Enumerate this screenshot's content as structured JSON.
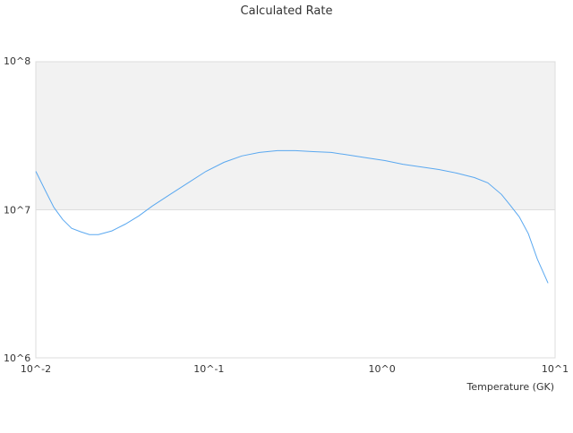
{
  "chart_data": {
    "type": "line",
    "title": "Calculated Rate",
    "xlabel": "Temperature (GK)",
    "ylabel": "",
    "xscale": "log",
    "yscale": "log",
    "xlim": [
      0.01,
      10
    ],
    "ylim": [
      1000000,
      100000000
    ],
    "xticks": [
      {
        "value": 0.01,
        "label": "10^-2"
      },
      {
        "value": 0.1,
        "label": "10^-1"
      },
      {
        "value": 1,
        "label": "10^0"
      },
      {
        "value": 10,
        "label": "10^1"
      }
    ],
    "yticks": [
      {
        "value": 1000000,
        "label": "10^6"
      },
      {
        "value": 10000000,
        "label": "10^7"
      },
      {
        "value": 100000000,
        "label": "10^8"
      }
    ],
    "grid": true,
    "band_color": "#f2f2f2",
    "line_color": "#5aa8f0",
    "series": [
      {
        "x": [
          0.01,
          0.0113,
          0.0127,
          0.0143,
          0.0161,
          0.0182,
          0.0204,
          0.023,
          0.0275,
          0.0329,
          0.0394,
          0.0471,
          0.0597,
          0.0757,
          0.0962,
          0.122,
          0.155,
          0.196,
          0.249,
          0.316,
          0.401,
          0.509,
          0.646,
          0.82,
          1.04,
          1.32,
          1.67,
          2.13,
          2.7,
          3.42,
          4.09,
          4.9,
          5.51,
          6.21,
          7.0,
          7.89,
          9.1
        ],
        "y": [
          18200000,
          13600000,
          10400000,
          8600000,
          7500000,
          7100000,
          6800000,
          6800000,
          7200000,
          8000000,
          9100000,
          10600000,
          12700000,
          15200000,
          18200000,
          20900000,
          23100000,
          24400000,
          25100000,
          25100000,
          24700000,
          24400000,
          23400000,
          22400000,
          21500000,
          20300000,
          19500000,
          18700000,
          17700000,
          16500000,
          15200000,
          12700000,
          10700000,
          8960000,
          6900000,
          4660000,
          3200000
        ]
      }
    ]
  }
}
